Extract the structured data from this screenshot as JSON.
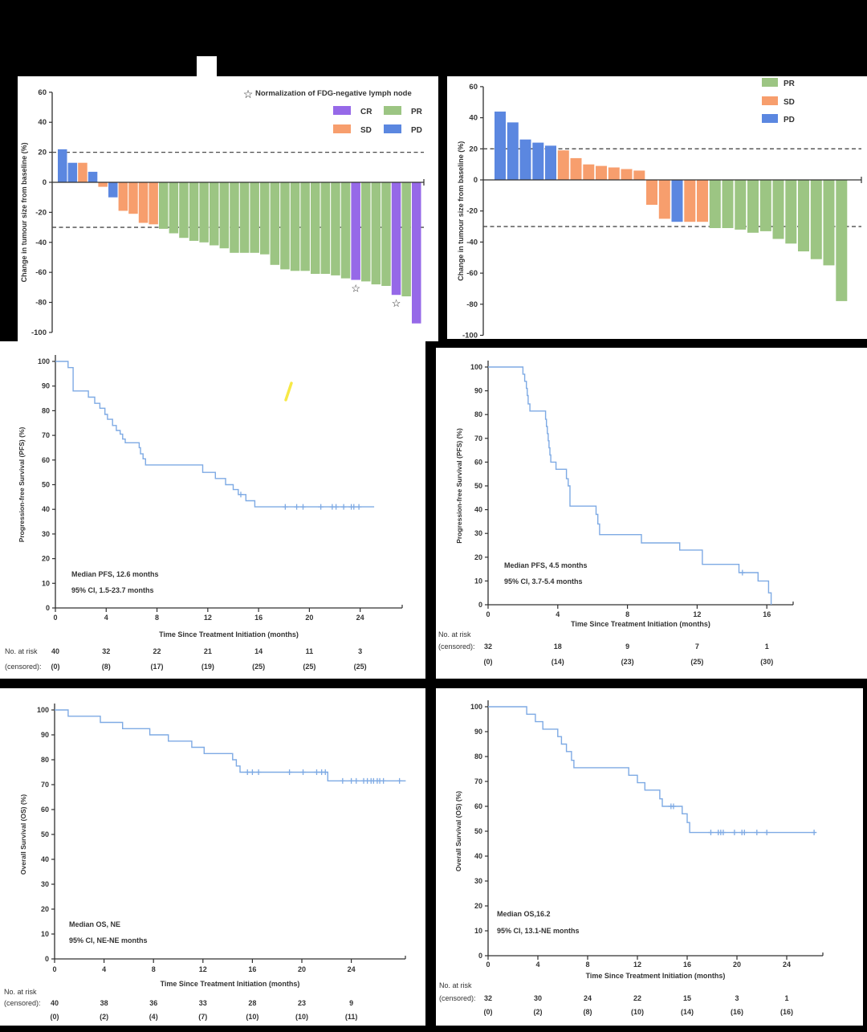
{
  "colors": {
    "background": "#000000",
    "panel": "#ffffff",
    "km_line": "#7eaae4",
    "axis": "#303030",
    "text": "#333333",
    "dashed_line": "#4b4b4b",
    "highlight_mark": "#f7e733",
    "status": {
      "CR": "#9669e8",
      "PR": "#9cc583",
      "SD": "#f79e6d",
      "PD": "#5b87e0"
    }
  },
  "chart_data": [
    {
      "id": "waterfall-left",
      "type": "bar",
      "ylabel": "Change in tumour size from baseline (%)",
      "ylim": [
        -100,
        60
      ],
      "yticks": [
        60,
        40,
        20,
        0,
        -20,
        -40,
        -60,
        -80,
        -100
      ],
      "reference_lines": [
        20,
        -30
      ],
      "legend_note": {
        "icon": "star-icon",
        "text": "Normalization of FDG-negative lymph node"
      },
      "legend": [
        "CR",
        "PR",
        "SD",
        "PD"
      ],
      "values": [
        22,
        13,
        13,
        7,
        -3,
        -10,
        -19,
        -21,
        -27,
        -28,
        -31,
        -34,
        -37,
        -39,
        -40,
        -42,
        -44,
        -47,
        -47,
        -47,
        -48,
        -55,
        -58,
        -59,
        -59,
        -61,
        -61,
        -62,
        -64,
        -65,
        -66,
        -68,
        -69,
        -75,
        -76,
        -94
      ],
      "groups": [
        "PD",
        "PD",
        "SD",
        "PD",
        "SD",
        "PD",
        "SD",
        "SD",
        "SD",
        "SD",
        "PR",
        "PR",
        "PR",
        "PR",
        "PR",
        "PR",
        "PR",
        "PR",
        "PR",
        "PR",
        "PR",
        "PR",
        "PR",
        "PR",
        "PR",
        "PR",
        "PR",
        "PR",
        "PR",
        "CR",
        "PR",
        "PR",
        "PR",
        "CR",
        "PR",
        "CR"
      ],
      "starred_bars": [
        29,
        33
      ]
    },
    {
      "id": "waterfall-right",
      "type": "bar",
      "ylabel": "Change in tumour size from baseline (%)",
      "ylim": [
        -100,
        60
      ],
      "yticks": [
        60,
        40,
        20,
        0,
        -20,
        -40,
        -60,
        -80,
        -100
      ],
      "reference_lines": [
        20,
        -30
      ],
      "legend": [
        "PR",
        "SD",
        "PD"
      ],
      "values": [
        44,
        37,
        26,
        24,
        22,
        19,
        14,
        10,
        9,
        8,
        7,
        6,
        -16,
        -25,
        -27,
        -27,
        -27,
        -31,
        -31,
        -32,
        -34,
        -33,
        -38,
        -41,
        -46,
        -51,
        -55,
        -78
      ],
      "groups": [
        "PD",
        "PD",
        "PD",
        "PD",
        "PD",
        "SD",
        "SD",
        "SD",
        "SD",
        "SD",
        "SD",
        "SD",
        "SD",
        "SD",
        "PD",
        "SD",
        "SD",
        "PR",
        "PR",
        "PR",
        "PR",
        "PR",
        "PR",
        "PR",
        "PR",
        "PR",
        "PR",
        "PR"
      ],
      "starred_bars": []
    },
    {
      "id": "pfs-left",
      "type": "line",
      "ylabel": "Progression-free Survival (PFS) (%)",
      "xlabel": "Time Since Treatment Initiation (months)",
      "ylim": [
        0,
        100
      ],
      "yticks": [
        0,
        10,
        20,
        30,
        40,
        50,
        60,
        70,
        80,
        90,
        100
      ],
      "xticks": [
        0,
        4,
        8,
        12,
        16,
        20,
        24
      ],
      "xlim": [
        0,
        27.2
      ],
      "end_x": 25.1,
      "steps": [
        [
          0,
          100
        ],
        [
          1.0,
          97.5
        ],
        [
          1.4,
          88
        ],
        [
          2.6,
          85.5
        ],
        [
          3.1,
          83
        ],
        [
          3.5,
          81
        ],
        [
          3.9,
          78.5
        ],
        [
          4.1,
          76.5
        ],
        [
          4.5,
          74
        ],
        [
          4.8,
          72
        ],
        [
          5.1,
          70.5
        ],
        [
          5.3,
          68.5
        ],
        [
          5.5,
          67
        ],
        [
          6.6,
          65
        ],
        [
          6.7,
          62.5
        ],
        [
          6.9,
          60.5
        ],
        [
          7.1,
          58
        ],
        [
          11.6,
          55
        ],
        [
          12.6,
          52.5
        ],
        [
          13.4,
          50
        ],
        [
          14.0,
          48
        ],
        [
          14.4,
          46
        ],
        [
          15.0,
          43.5
        ],
        [
          15.7,
          41
        ]
      ],
      "censors": [
        [
          14.6,
          46
        ],
        [
          18.1,
          41
        ],
        [
          19.0,
          41
        ],
        [
          19.5,
          41
        ],
        [
          20.9,
          41
        ],
        [
          21.8,
          41
        ],
        [
          22.1,
          41
        ],
        [
          22.7,
          41
        ],
        [
          23.3,
          41
        ],
        [
          23.5,
          41
        ],
        [
          23.9,
          41
        ]
      ],
      "annotation": [
        "Median PFS, 12.6 months",
        "95% CI, 1.5-23.7 months"
      ],
      "risk_label": [
        "No. at risk",
        "(censored):"
      ],
      "risk_times": [
        0,
        4,
        8,
        12,
        16,
        20,
        24
      ],
      "risk_n": [
        "40",
        "32",
        "22",
        "21",
        "14",
        "11",
        "3"
      ],
      "risk_censored": [
        "(0)",
        "(8)",
        "(17)",
        "(19)",
        "(25)",
        "(25)",
        "(25)"
      ]
    },
    {
      "id": "pfs-right",
      "type": "line",
      "ylabel": "Progression-free Survival (PFS) (%)",
      "xlabel": "Time Since Treatment Initiation (months)",
      "ylim": [
        0,
        100
      ],
      "yticks": [
        0,
        10,
        20,
        30,
        40,
        50,
        60,
        70,
        80,
        90,
        100
      ],
      "xticks": [
        0,
        4,
        8,
        12,
        16
      ],
      "xlim": [
        0,
        17.6
      ],
      "end_x": 16.25,
      "steps": [
        [
          0,
          100
        ],
        [
          2.0,
          97
        ],
        [
          2.1,
          94
        ],
        [
          2.2,
          91
        ],
        [
          2.25,
          88
        ],
        [
          2.3,
          84.5
        ],
        [
          2.4,
          81.5
        ],
        [
          3.3,
          78
        ],
        [
          3.35,
          75
        ],
        [
          3.4,
          72
        ],
        [
          3.45,
          69
        ],
        [
          3.5,
          66
        ],
        [
          3.55,
          63
        ],
        [
          3.6,
          60
        ],
        [
          3.9,
          57
        ],
        [
          4.5,
          53
        ],
        [
          4.6,
          50
        ],
        [
          4.7,
          41.5
        ],
        [
          6.2,
          38
        ],
        [
          6.3,
          34
        ],
        [
          6.4,
          29.5
        ],
        [
          8.8,
          26
        ],
        [
          11.0,
          23
        ],
        [
          12.3,
          17
        ],
        [
          14.4,
          13.5
        ],
        [
          15.5,
          10
        ],
        [
          16.1,
          5
        ],
        [
          16.25,
          0
        ]
      ],
      "censors": [
        [
          14.6,
          13.5
        ]
      ],
      "annotation": [
        "Median PFS, 4.5 months",
        "95% CI, 3.7-5.4 months"
      ],
      "risk_label": [
        "No. at risk",
        "(censored):"
      ],
      "risk_times": [
        0,
        4,
        8,
        12,
        16
      ],
      "risk_n": [
        "32",
        "18",
        "9",
        "7",
        "1"
      ],
      "risk_censored": [
        "(0)",
        "(14)",
        "(23)",
        "(25)",
        "(30)"
      ]
    },
    {
      "id": "os-left",
      "type": "line",
      "ylabel": "Overall Survival (OS) (%)",
      "xlabel": "Time Since Treatment Initiation (months)",
      "ylim": [
        0,
        100
      ],
      "yticks": [
        0,
        10,
        20,
        30,
        40,
        50,
        60,
        70,
        80,
        90,
        100
      ],
      "xticks": [
        0,
        4,
        8,
        12,
        16,
        20,
        24
      ],
      "xlim": [
        0,
        28.6
      ],
      "end_x": 28.4,
      "steps": [
        [
          0,
          100
        ],
        [
          1.1,
          97.5
        ],
        [
          3.7,
          95
        ],
        [
          5.5,
          92.5
        ],
        [
          7.7,
          90
        ],
        [
          9.2,
          87.5
        ],
        [
          11.1,
          85
        ],
        [
          12.1,
          82.5
        ],
        [
          14.4,
          80
        ],
        [
          14.7,
          77.5
        ],
        [
          15.0,
          75
        ],
        [
          22.1,
          71.5
        ]
      ],
      "censors": [
        [
          15.6,
          75
        ],
        [
          16.0,
          75
        ],
        [
          16.5,
          75
        ],
        [
          19.0,
          75
        ],
        [
          20.1,
          75
        ],
        [
          21.2,
          75
        ],
        [
          21.6,
          75
        ],
        [
          21.9,
          75
        ],
        [
          23.3,
          71.5
        ],
        [
          24.0,
          71.5
        ],
        [
          24.4,
          71.5
        ],
        [
          25.0,
          71.5
        ],
        [
          25.3,
          71.5
        ],
        [
          25.6,
          71.5
        ],
        [
          25.8,
          71.5
        ],
        [
          26.1,
          71.5
        ],
        [
          26.3,
          71.5
        ],
        [
          26.6,
          71.5
        ],
        [
          27.9,
          71.5
        ]
      ],
      "annotation": [
        "Median OS, NE",
        "95% CI, NE-NE months"
      ],
      "risk_label": [
        "No. at risk",
        "(censored):"
      ],
      "risk_times": [
        0,
        4,
        8,
        12,
        16,
        20,
        24
      ],
      "risk_n": [
        "40",
        "38",
        "36",
        "33",
        "28",
        "23",
        "9"
      ],
      "risk_censored": [
        "(0)",
        "(2)",
        "(4)",
        "(7)",
        "(10)",
        "(10)",
        "(11)"
      ]
    },
    {
      "id": "os-right",
      "type": "line",
      "ylabel": "Overall Survival (OS) (%)",
      "xlabel": "Time Since Treatment Initiation (months)",
      "ylim": [
        0,
        100
      ],
      "yticks": [
        0,
        10,
        20,
        30,
        40,
        50,
        60,
        70,
        80,
        90,
        100
      ],
      "xticks": [
        0,
        4,
        8,
        12,
        16,
        20,
        24
      ],
      "xlim": [
        0,
        26.5
      ],
      "end_x": 26.3,
      "steps": [
        [
          0,
          100
        ],
        [
          3.1,
          97
        ],
        [
          3.8,
          94
        ],
        [
          4.4,
          91
        ],
        [
          5.6,
          88
        ],
        [
          5.9,
          85
        ],
        [
          6.3,
          82
        ],
        [
          6.7,
          78.5
        ],
        [
          6.9,
          75.5
        ],
        [
          11.3,
          72.5
        ],
        [
          12.0,
          69.5
        ],
        [
          12.6,
          66.5
        ],
        [
          13.8,
          63
        ],
        [
          14.0,
          60
        ],
        [
          15.6,
          57
        ],
        [
          16.0,
          53.5
        ],
        [
          16.2,
          49.5
        ]
      ],
      "censors": [
        [
          14.7,
          60
        ],
        [
          14.9,
          60
        ],
        [
          17.9,
          49.5
        ],
        [
          18.5,
          49.5
        ],
        [
          18.7,
          49.5
        ],
        [
          18.9,
          49.5
        ],
        [
          19.8,
          49.5
        ],
        [
          20.4,
          49.5
        ],
        [
          20.6,
          49.5
        ],
        [
          21.6,
          49.5
        ],
        [
          22.4,
          49.5
        ],
        [
          26.2,
          49.5
        ]
      ],
      "annotation": [
        "Median OS,16.2",
        "95% CI, 13.1-NE months"
      ],
      "risk_label": [
        "No. at risk",
        "(censored):"
      ],
      "risk_times": [
        0,
        4,
        8,
        12,
        16,
        20,
        24
      ],
      "risk_n": [
        "32",
        "30",
        "24",
        "22",
        "15",
        "3",
        "1"
      ],
      "risk_censored": [
        "(0)",
        "(2)",
        "(8)",
        "(10)",
        "(14)",
        "(16)",
        "(16)"
      ]
    }
  ]
}
